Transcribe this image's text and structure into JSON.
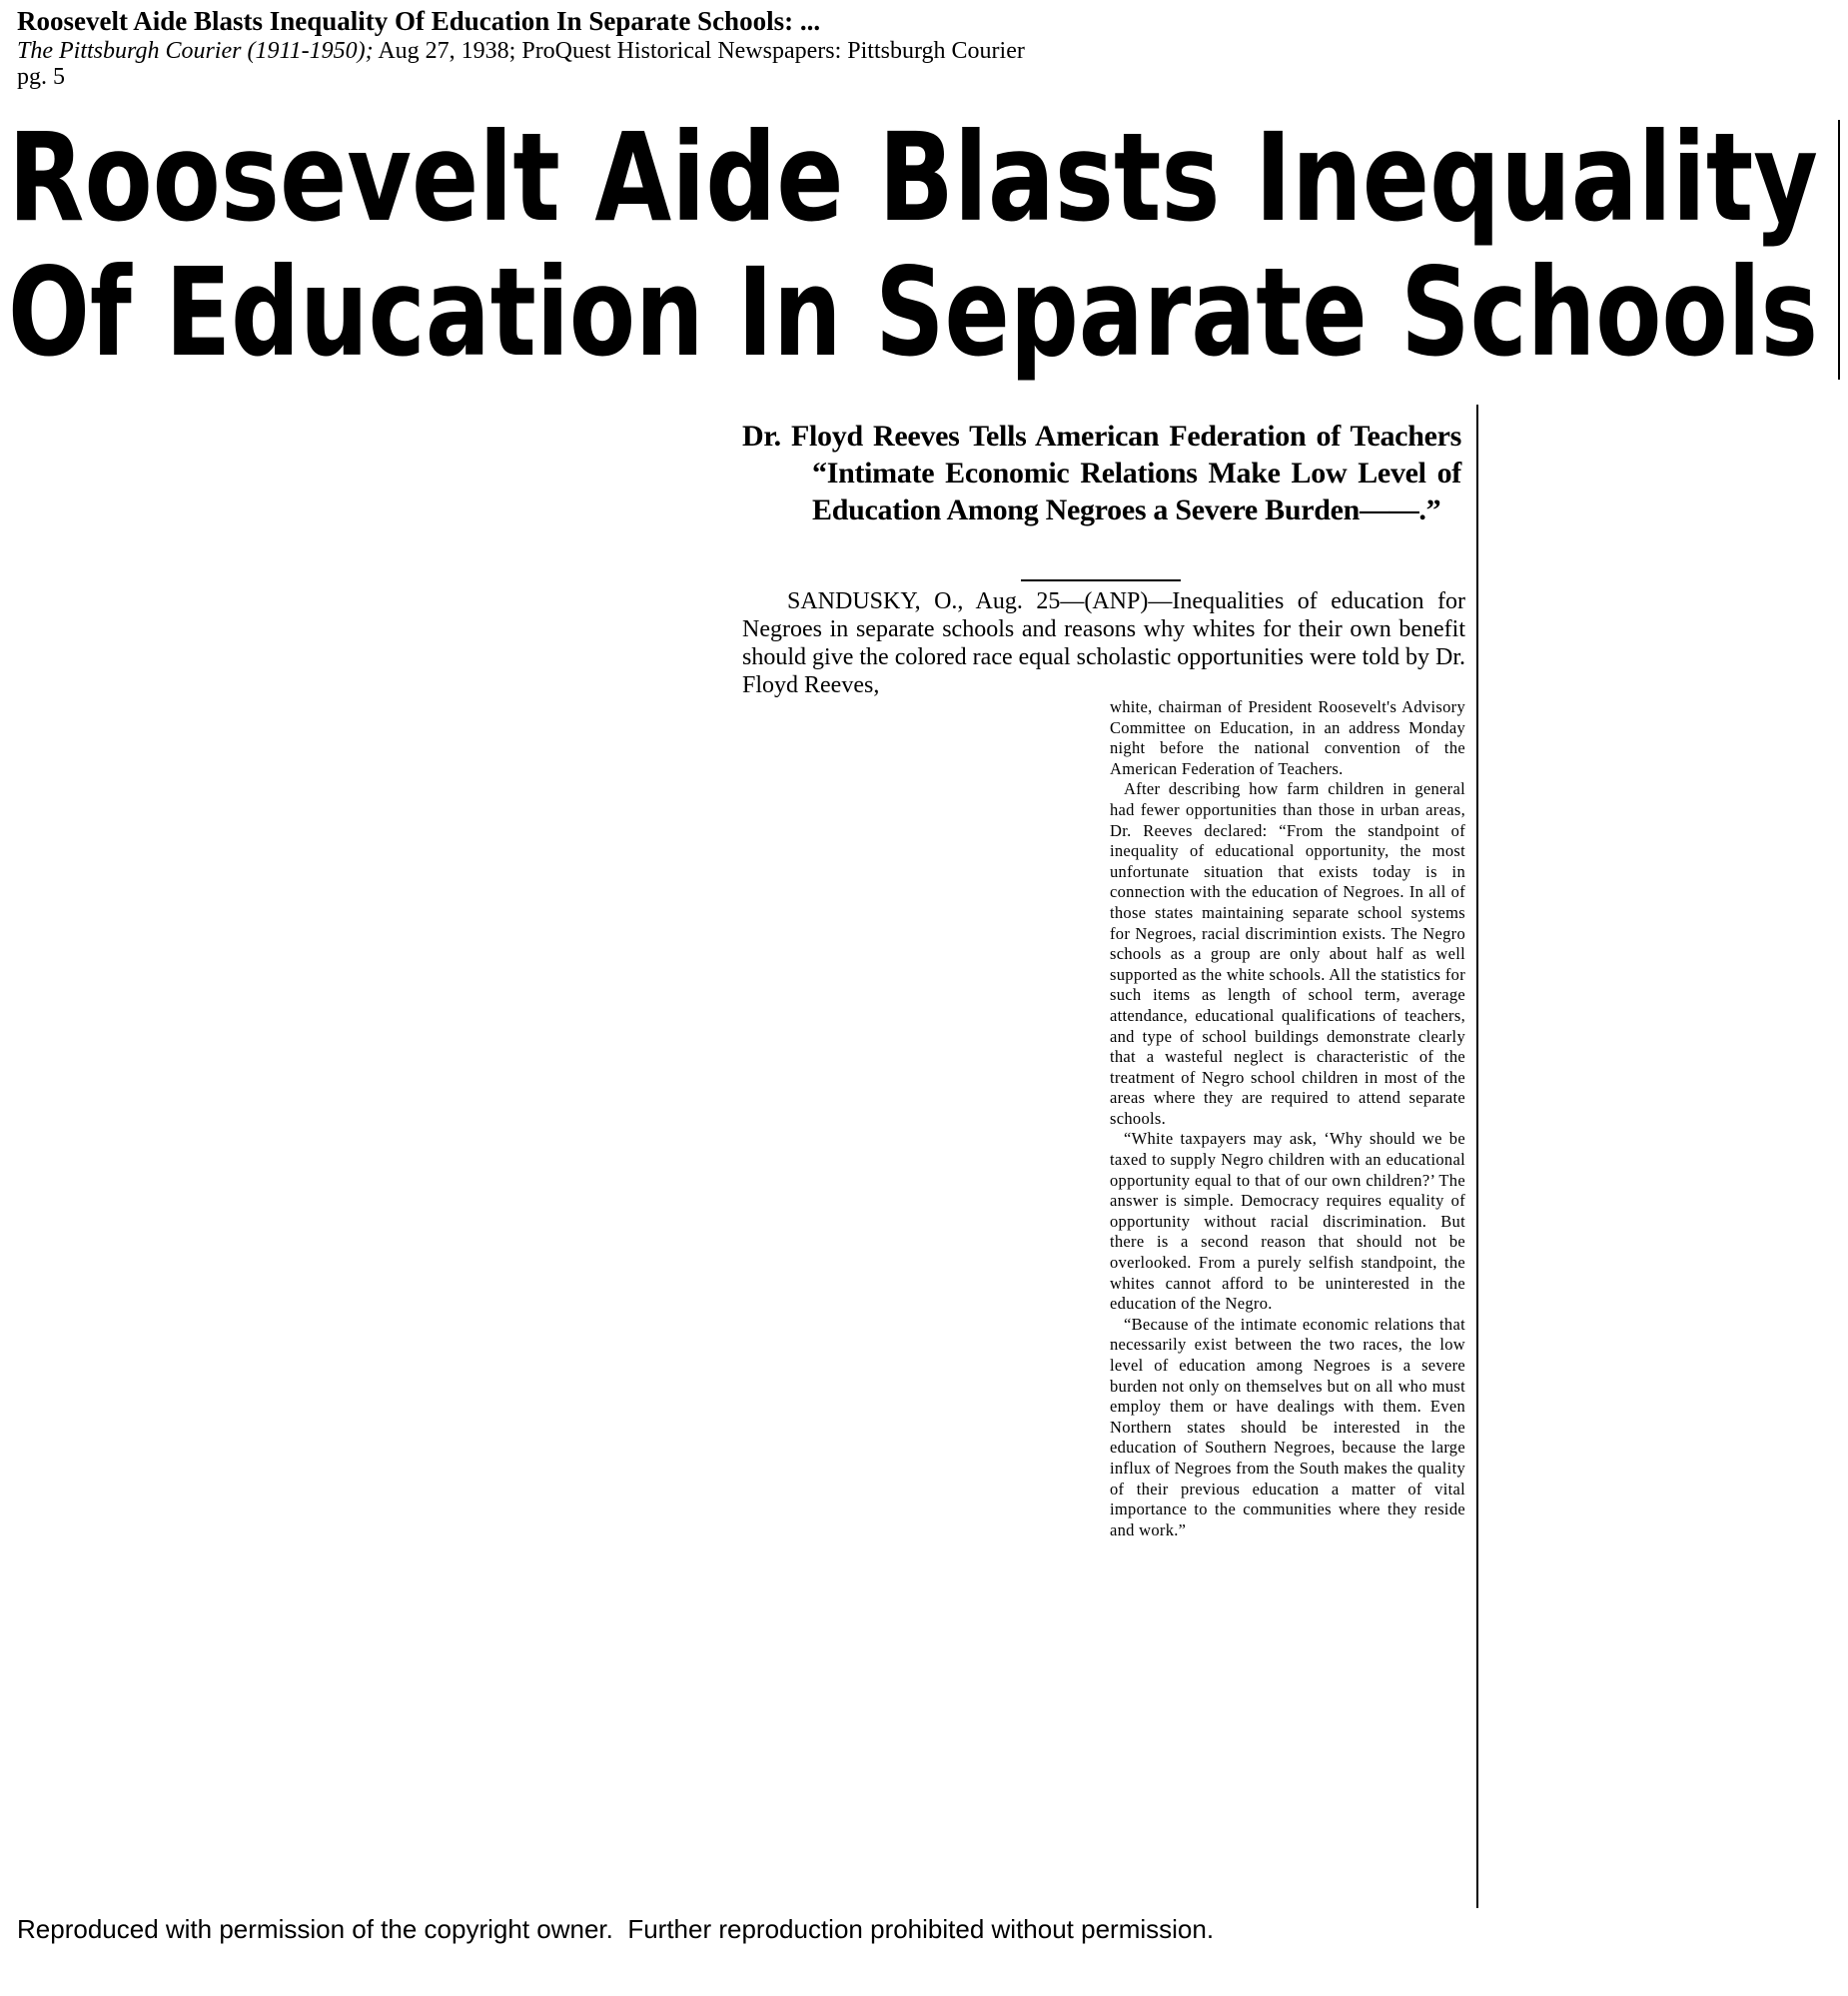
{
  "header": {
    "title": "Roosevelt Aide Blasts Inequality Of Education In Separate Schools: ...",
    "source_italic": "The Pittsburgh Courier (1911-1950);",
    "source_rest": "Aug 27, 1938; ProQuest Historical Newspapers: Pittsburgh Courier",
    "page": "pg. 5"
  },
  "article": {
    "headline": [
      "Roosevelt Aide Blasts Inequality",
      "Of Education In Separate Schools"
    ],
    "subhead": "Dr. Floyd Reeves Tells American Federation of Teachers “Intimate Economic Relations Make Low Level of Education Among Negroes a Severe Burden——.”",
    "lead": "SANDUSKY, O., Aug. 25—(ANP)—Inequalities of education for Negroes in separate schools and reasons why whites for their own benefit should give the colored race equal scholastic opportunities were told by Dr. Floyd Reeves,",
    "paragraphs": [
      "white, chairman of President Roosevelt's Advisory Committee on Education, in an address Monday night before the national convention of the American Federation of Teachers.",
      "After describing how farm children in general had fewer opportunities than those in urban areas, Dr. Reeves declared: “From the standpoint of inequality of educational opportunity, the most unfortunate situation that exists today is in connection with the education of Negroes. In all of those states maintaining separate school systems for Negroes, racial discrimintion exists. The Negro schools as a group are only about half as well supported as the white schools. All the statistics for such items as length of school term, average attendance, educational qualifications of teachers, and type of school buildings demonstrate clearly that a wasteful neglect is characteristic of the treatment of Negro school children in most of the areas where they are required to attend separate schools.",
      "“White taxpayers may ask, ‘Why should we be taxed to supply Negro children with an educational opportunity equal to that of our own children?’ The answer is simple. Democracy requires equality of opportunity without racial discrimination. But there is a second reason that should not be overlooked. From a purely selfish standpoint, the whites cannot afford to be uninterested in the education of the Negro.",
      "“Because of the intimate economic relations that necessarily exist between the two races, the low level of education among Negroes is a severe burden not only on themselves but on all who must employ them or have dealings with them. Even Northern states should be interested in the education of Southern Negroes, because the large influx of Negroes from the South makes the quality of their previous education a matter of vital importance to the communities where they reside and work.”"
    ]
  },
  "footer": "Reproduced with permission of the copyright owner.  Further reproduction prohibited without permission."
}
